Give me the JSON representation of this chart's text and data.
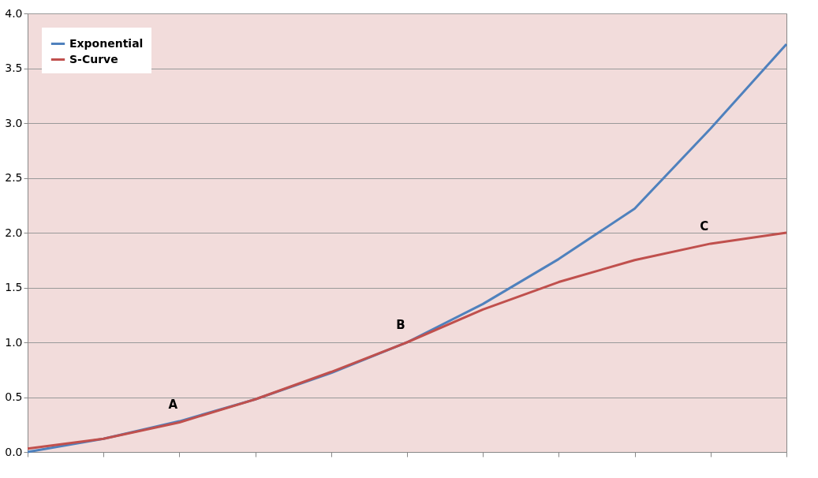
{
  "chart_data": {
    "type": "line",
    "categories": [
      null,
      null,
      null,
      null,
      null,
      null,
      null,
      null,
      null,
      null,
      null
    ],
    "series": [
      {
        "name": "Exponential",
        "color": "#4f81bd",
        "values": [
          0.0,
          0.12,
          0.28,
          0.48,
          0.72,
          1.0,
          1.35,
          1.76,
          2.22,
          2.95,
          3.72
        ]
      },
      {
        "name": "S-Curve",
        "color": "#c0504d",
        "values": [
          0.03,
          0.12,
          0.27,
          0.48,
          0.73,
          1.0,
          1.3,
          1.55,
          1.75,
          1.9,
          2.0
        ]
      }
    ],
    "ylim": [
      0,
      4
    ],
    "yticks": [
      {
        "value": 0,
        "label": "0.0"
      },
      {
        "value": 0.5,
        "label": "0.5"
      },
      {
        "value": 1,
        "label": "1.0"
      },
      {
        "value": 1.5,
        "label": "1.5"
      },
      {
        "value": 2,
        "label": "2.0"
      },
      {
        "value": 2.5,
        "label": "2.5"
      },
      {
        "value": 3,
        "label": "3.0"
      },
      {
        "value": 3.5,
        "label": "3.5"
      },
      {
        "value": 4,
        "label": "4.0"
      }
    ],
    "annotations": [
      {
        "text": "A",
        "y": 0.27
      },
      {
        "text": "B",
        "y": 1.0
      },
      {
        "text": "C",
        "y": 1.9
      }
    ],
    "grid": "y",
    "legend": "top left",
    "tick_labels": "y",
    "marker": "none",
    "line_style": "solid"
  }
}
